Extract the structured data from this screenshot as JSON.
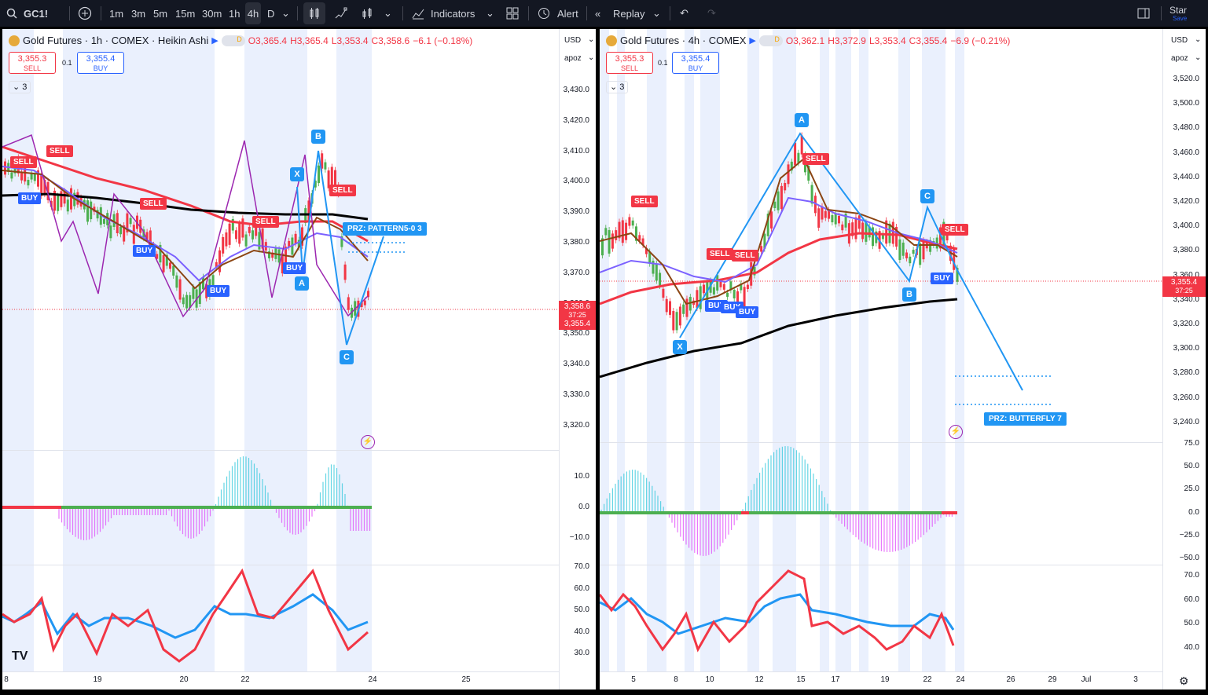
{
  "toolbar": {
    "symbol": "GC1!",
    "timeframes": [
      "1m",
      "3m",
      "5m",
      "15m",
      "30m",
      "1h",
      "4h",
      "D"
    ],
    "active_timeframe": "4h",
    "indicators_label": "Indicators",
    "alert_label": "Alert",
    "replay_label": "Replay",
    "star_label": "Star",
    "save_label": "Save"
  },
  "left": {
    "title": "Gold Futures · 1h · COMEX · Heikin Ashi",
    "o": "O3,365.4",
    "h": "H3,365.4",
    "l": "L3,353.4",
    "c": "C3,358.6",
    "chg": "−6.1 (−0.18%)",
    "sell_price": "3,355.3",
    "sell_label": "SELL",
    "buy_price": "3,355.4",
    "buy_label": "BUY",
    "spread": "0.1",
    "layers": "3",
    "currency": "USD",
    "scale_mode": "apoz",
    "price_ticks": [
      "3,430.0",
      "3,420.0",
      "3,410.0",
      "3,400.0",
      "3,390.0",
      "3,380.0",
      "3,370.0",
      "3,360.0",
      "3,350.0",
      "3,340.0",
      "3,330.0",
      "3,320.0"
    ],
    "cur_price": "3,358.6",
    "countdown": "37:25",
    "cur_price2": "3,355.4",
    "osc_ticks": [
      "10.0",
      "0.0",
      "−10.0"
    ],
    "rsi_ticks": [
      "70.0",
      "60.0",
      "50.0",
      "40.0",
      "30.0"
    ],
    "x_labels": [
      "8",
      "19",
      "20",
      "22",
      "24",
      "25"
    ],
    "prz_label": "PRZ: PATTERN5-0 3",
    "points": [
      "X",
      "A",
      "B",
      "C"
    ],
    "signals": [
      "SELL",
      "SELL",
      "BUY",
      "SELL",
      "BUY",
      "SELL",
      "BUY",
      "SELL",
      "BUY"
    ]
  },
  "right": {
    "title": "Gold Futures · 4h · COMEX",
    "o": "O3,362.1",
    "h": "H3,372.9",
    "l": "L3,353.4",
    "c": "C3,355.4",
    "chg": "−6.9 (−0.21%)",
    "sell_price": "3,355.3",
    "sell_label": "SELL",
    "buy_price": "3,355.4",
    "buy_label": "BUY",
    "spread": "0.1",
    "layers": "3",
    "currency": "USD",
    "scale_mode": "apoz",
    "price_ticks": [
      "3,520.0",
      "3,500.0",
      "3,480.0",
      "3,460.0",
      "3,440.0",
      "3,420.0",
      "3,400.0",
      "3,380.0",
      "3,360.0",
      "3,340.0",
      "3,320.0",
      "3,300.0",
      "3,280.0",
      "3,260.0",
      "3,240.0"
    ],
    "cur_price": "3,355.4",
    "countdown": "37:25",
    "osc_ticks": [
      "75.0",
      "50.0",
      "25.0",
      "0.0",
      "−25.0",
      "−50.0"
    ],
    "rsi_ticks": [
      "70.0",
      "60.0",
      "50.0",
      "40.0"
    ],
    "x_labels": [
      "5",
      "8",
      "10",
      "12",
      "15",
      "17",
      "19",
      "22",
      "24",
      "26",
      "29",
      "Jul",
      "3"
    ],
    "prz_label": "PRZ: BUTTERFLY 7",
    "points": [
      "X",
      "A",
      "B",
      "C"
    ],
    "signals": [
      "SELL",
      "SELL",
      "SELL",
      "SELL",
      "BUY",
      "BUY",
      "BUY",
      "SELL",
      "BUY"
    ]
  },
  "colors": {
    "sell": "#f23645",
    "buy": "#2962ff",
    "pattern": "#2196f3",
    "purple": "#9c27b0",
    "black": "#000000",
    "bg": "#131722"
  }
}
